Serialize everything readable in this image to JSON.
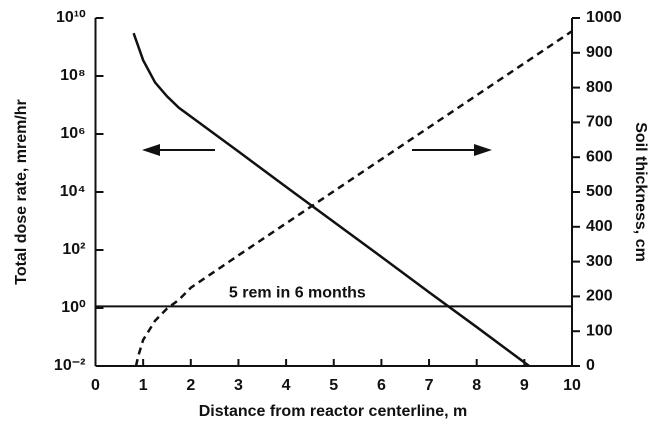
{
  "chart_data": {
    "type": "line",
    "xlabel": "Distance from reactor centerline, m",
    "ylabel": "Total dose rate, mrem/hr",
    "y2label": "Soil thickness, cm",
    "xlim": [
      0,
      10
    ],
    "xticks": [
      0,
      1,
      2,
      3,
      4,
      5,
      6,
      7,
      8,
      9,
      10
    ],
    "ylim": [
      0.01,
      10000000000
    ],
    "yscale": "log",
    "yticks": [
      {
        "value": 0.01,
        "label": "10⁻²"
      },
      {
        "value": 1,
        "label": "10⁰"
      },
      {
        "value": 100,
        "label": "10²"
      },
      {
        "value": 10000,
        "label": "10⁴"
      },
      {
        "value": 1000000,
        "label": "10⁶"
      },
      {
        "value": 100000000,
        "label": "10⁸"
      },
      {
        "value": 10000000000,
        "label": "10¹⁰"
      }
    ],
    "y2lim": [
      0,
      1000
    ],
    "y2ticks": [
      0,
      100,
      200,
      300,
      400,
      500,
      600,
      700,
      800,
      900,
      1000
    ],
    "series": [
      {
        "color": "#111111",
        "style": "solid",
        "x": [
          0.8,
          1,
          1.25,
          1.5,
          1.75,
          2,
          3,
          4,
          5,
          6,
          7,
          8,
          9.1
        ],
        "values": [
          3000000000,
          350000000,
          60000000,
          20000000,
          8000000,
          4000000,
          250000,
          15000,
          930,
          58,
          3.5,
          0.22,
          0.01
        ]
      },
      {
        "color": "#111111",
        "style": "dashed",
        "axis": "y2",
        "x": [
          0.85,
          0.9,
          1,
          1.25,
          1.5,
          1.75,
          2,
          3,
          4,
          5,
          6,
          7,
          8,
          9,
          10
        ],
        "values": [
          0,
          30,
          75,
          130,
          165,
          190,
          225,
          318,
          410,
          502,
          594,
          686,
          778,
          870,
          962
        ]
      }
    ],
    "hline": {
      "value": 1.14,
      "label": "5 rem in 6 months"
    }
  }
}
